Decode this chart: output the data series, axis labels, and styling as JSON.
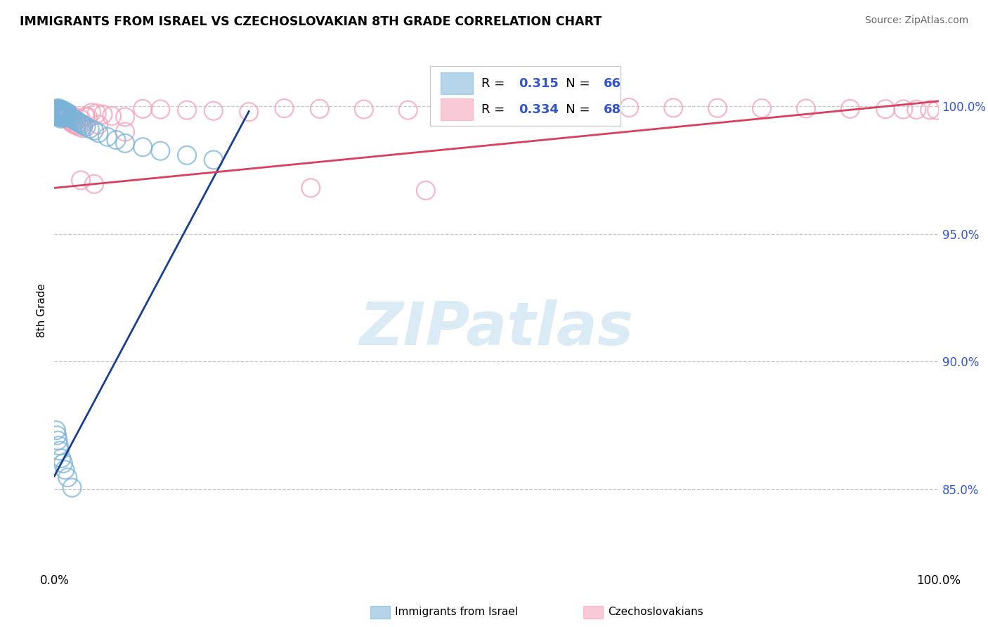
{
  "title": "IMMIGRANTS FROM ISRAEL VS CZECHOSLOVAKIAN 8TH GRADE CORRELATION CHART",
  "source": "Source: ZipAtlas.com",
  "ylabel": "8th Grade",
  "blue_R": "0.315",
  "blue_N": "66",
  "pink_R": "0.334",
  "pink_N": "68",
  "blue_color": "#7ab3d9",
  "pink_color": "#f4a0b8",
  "blue_line_color": "#1a3f8f",
  "pink_line_color": "#d94060",
  "text_blue_color": "#3355cc",
  "legend_label_blue": "Immigrants from Israel",
  "legend_label_pink": "Czechoslovakians",
  "blue_scatter_x": [
    0.001,
    0.002,
    0.002,
    0.003,
    0.003,
    0.004,
    0.004,
    0.005,
    0.005,
    0.005,
    0.006,
    0.006,
    0.006,
    0.007,
    0.007,
    0.007,
    0.008,
    0.008,
    0.009,
    0.009,
    0.01,
    0.01,
    0.01,
    0.011,
    0.011,
    0.012,
    0.012,
    0.013,
    0.013,
    0.014,
    0.015,
    0.015,
    0.016,
    0.017,
    0.018,
    0.019,
    0.02,
    0.021,
    0.022,
    0.024,
    0.025,
    0.027,
    0.029,
    0.031,
    0.033,
    0.036,
    0.04,
    0.045,
    0.05,
    0.06,
    0.07,
    0.08,
    0.1,
    0.12,
    0.15,
    0.18,
    0.002,
    0.003,
    0.004,
    0.005,
    0.006,
    0.008,
    0.01,
    0.012,
    0.015,
    0.02
  ],
  "blue_scatter_y": [
    0.9985,
    0.998,
    0.9975,
    0.999,
    0.997,
    0.9985,
    0.9965,
    0.9992,
    0.9978,
    0.996,
    0.9988,
    0.9975,
    0.9958,
    0.9985,
    0.997,
    0.9952,
    0.998,
    0.9965,
    0.9978,
    0.996,
    0.9985,
    0.9972,
    0.9955,
    0.998,
    0.9965,
    0.9978,
    0.996,
    0.9975,
    0.9958,
    0.997,
    0.9975,
    0.996,
    0.9968,
    0.9965,
    0.996,
    0.9958,
    0.9955,
    0.995,
    0.9948,
    0.9945,
    0.9942,
    0.9938,
    0.9935,
    0.993,
    0.9925,
    0.992,
    0.9912,
    0.9905,
    0.9895,
    0.988,
    0.9868,
    0.9855,
    0.984,
    0.9825,
    0.9808,
    0.979,
    0.873,
    0.871,
    0.869,
    0.867,
    0.865,
    0.862,
    0.86,
    0.8575,
    0.8545,
    0.8505
  ],
  "pink_scatter_x": [
    0.001,
    0.002,
    0.003,
    0.004,
    0.005,
    0.006,
    0.007,
    0.008,
    0.009,
    0.01,
    0.011,
    0.012,
    0.013,
    0.014,
    0.015,
    0.016,
    0.017,
    0.018,
    0.02,
    0.022,
    0.025,
    0.028,
    0.032,
    0.035,
    0.038,
    0.042,
    0.048,
    0.055,
    0.065,
    0.08,
    0.1,
    0.12,
    0.15,
    0.18,
    0.22,
    0.26,
    0.3,
    0.35,
    0.4,
    0.45,
    0.5,
    0.55,
    0.6,
    0.65,
    0.7,
    0.75,
    0.8,
    0.85,
    0.9,
    0.94,
    0.96,
    0.975,
    0.99,
    0.998,
    0.002,
    0.003,
    0.005,
    0.007,
    0.01,
    0.015,
    0.02,
    0.03,
    0.05,
    0.08,
    0.03,
    0.045,
    0.29,
    0.42
  ],
  "pink_scatter_y": [
    0.9988,
    0.9982,
    0.9978,
    0.9985,
    0.998,
    0.9975,
    0.997,
    0.9965,
    0.996,
    0.9958,
    0.9975,
    0.9968,
    0.9962,
    0.9958,
    0.9955,
    0.995,
    0.9945,
    0.994,
    0.9935,
    0.993,
    0.9925,
    0.992,
    0.9915,
    0.996,
    0.9958,
    0.9975,
    0.9972,
    0.9968,
    0.9962,
    0.9958,
    0.999,
    0.9988,
    0.9985,
    0.9982,
    0.9978,
    0.9992,
    0.999,
    0.9988,
    0.9985,
    0.9982,
    0.9998,
    0.9997,
    0.9996,
    0.9995,
    0.9994,
    0.9993,
    0.9992,
    0.9991,
    0.999,
    0.9989,
    0.9988,
    0.9987,
    0.9986,
    0.9985,
    0.999,
    0.9988,
    0.9985,
    0.9982,
    0.9978,
    0.9972,
    0.9965,
    0.995,
    0.9928,
    0.99,
    0.971,
    0.9695,
    0.968,
    0.967
  ],
  "blue_trend_x": [
    0.0,
    0.22
  ],
  "blue_trend_y": [
    0.855,
    0.998
  ],
  "pink_trend_x": [
    0.0,
    1.0
  ],
  "pink_trend_y": [
    0.968,
    1.002
  ],
  "ytick_positions": [
    0.85,
    0.9,
    0.95,
    1.0
  ],
  "ytick_labels": [
    "85.0%",
    "90.0%",
    "95.0%",
    "100.0%"
  ],
  "xlim": [
    0.0,
    1.0
  ],
  "ylim": [
    0.818,
    1.022
  ],
  "watermark_text": "ZIPatlas"
}
